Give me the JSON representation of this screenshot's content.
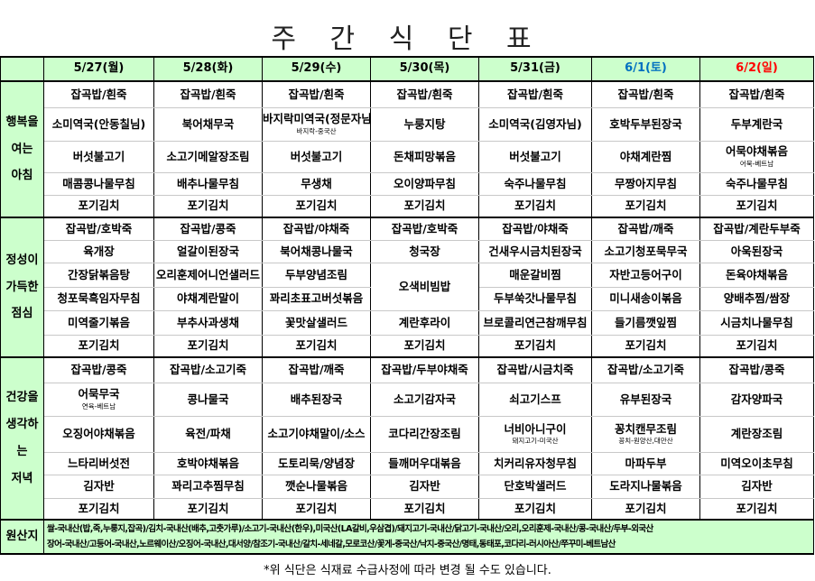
{
  "title": "주 간 식 단 표",
  "days": [
    {
      "label": "5/27(월)",
      "color": "#000000"
    },
    {
      "label": "5/28(화)",
      "color": "#000000"
    },
    {
      "label": "5/29(수)",
      "color": "#000000"
    },
    {
      "label": "5/30(목)",
      "color": "#000000"
    },
    {
      "label": "5/31(금)",
      "color": "#000000"
    },
    {
      "label": "6/1(토)",
      "color": "#0070c0"
    },
    {
      "label": "6/2(일)",
      "color": "#ff0000"
    }
  ],
  "meals": [
    {
      "label_lines": [
        "행복을",
        "여는",
        "아침"
      ],
      "days": [
        [
          {
            "t": "잡곡밥/흰죽"
          },
          {
            "t": "소미역국(안동칠님)"
          },
          {
            "t": "버섯불고기"
          },
          {
            "t": "매콤콩나물무침"
          },
          {
            "t": "포기김치"
          }
        ],
        [
          {
            "t": "잡곡밥/흰죽"
          },
          {
            "t": "북어채무국"
          },
          {
            "t": "소고기메알장조림"
          },
          {
            "t": "배추나물무침"
          },
          {
            "t": "포기김치"
          }
        ],
        [
          {
            "t": "잡곡밥/흰죽"
          },
          {
            "t": "바지락미역국(정문자님)",
            "n": "바지락-중국산"
          },
          {
            "t": "버섯불고기"
          },
          {
            "t": "무생채"
          },
          {
            "t": "포기김치"
          }
        ],
        [
          {
            "t": "잡곡밥/흰죽"
          },
          {
            "t": "누룽지탕"
          },
          {
            "t": "돈채피망볶음"
          },
          {
            "t": "오이양파무침"
          },
          {
            "t": "포기김치"
          }
        ],
        [
          {
            "t": "잡곡밥/흰죽"
          },
          {
            "t": "소미역국(김영자님)"
          },
          {
            "t": "버섯불고기"
          },
          {
            "t": "숙주나물무침"
          },
          {
            "t": "포기김치"
          }
        ],
        [
          {
            "t": "잡곡밥/흰죽"
          },
          {
            "t": "호박두부된장국"
          },
          {
            "t": "야채계란찜"
          },
          {
            "t": "무짱아지무침"
          },
          {
            "t": "포기김치"
          }
        ],
        [
          {
            "t": "잡곡밥/흰죽"
          },
          {
            "t": "두부계란국"
          },
          {
            "t": "어묵야채볶음",
            "n": "어묵-베트남"
          },
          {
            "t": "숙주나물무침"
          },
          {
            "t": "포기김치"
          }
        ]
      ]
    },
    {
      "label_lines": [
        "정성이",
        "가득한",
        "점심"
      ],
      "days": [
        [
          {
            "t": "잡곡밥/호박죽"
          },
          {
            "t": "육개장"
          },
          {
            "t": "간장닭볶음탕"
          },
          {
            "t": "청포묵흑임자무침"
          },
          {
            "t": "미역줄기볶음"
          },
          {
            "t": "포기김치"
          }
        ],
        [
          {
            "t": "잡곡밥/콩죽"
          },
          {
            "t": "얼갈이된장국"
          },
          {
            "t": "오리훈제어니언샐러드"
          },
          {
            "t": "야채계란말이"
          },
          {
            "t": "부추사과생채"
          },
          {
            "t": "포기김치"
          }
        ],
        [
          {
            "t": "잡곡밥/야채죽"
          },
          {
            "t": "북어채콩나물국"
          },
          {
            "t": "두부양념조림"
          },
          {
            "t": "꽈리초표고버섯볶음"
          },
          {
            "t": "꽃맛살샐러드"
          },
          {
            "t": "포기김치"
          }
        ],
        [
          {
            "t": "잡곡밥/호박죽"
          },
          {
            "t": "청국장"
          },
          {
            "t": "오색비빔밥",
            "span": 2
          },
          null,
          {
            "t": "계란후라이"
          },
          {
            "t": "포기김치"
          }
        ],
        [
          {
            "t": "잡곡밥/야채죽"
          },
          {
            "t": "건새우시금치된장국"
          },
          {
            "t": "매운갈비찜"
          },
          {
            "t": "두부쑥갓나물무침"
          },
          {
            "t": "브로콜리연근참깨무침"
          },
          {
            "t": "포기김치"
          }
        ],
        [
          {
            "t": "잡곡밥/깨죽"
          },
          {
            "t": "소고기청포묵무국"
          },
          {
            "t": "자반고등어구이"
          },
          {
            "t": "미니새송이볶음"
          },
          {
            "t": "들기름깻잎찜"
          },
          {
            "t": "포기김치"
          }
        ],
        [
          {
            "t": "잡곡밥/계란두부죽"
          },
          {
            "t": "아욱된장국"
          },
          {
            "t": "돈육야채볶음"
          },
          {
            "t": "양배추찜/쌈장"
          },
          {
            "t": "시금치나물무침"
          },
          {
            "t": "포기김치"
          }
        ]
      ]
    },
    {
      "label_lines": [
        "건강을",
        "생각하는",
        "저녁"
      ],
      "days": [
        [
          {
            "t": "잡곡밥/콩죽"
          },
          {
            "t": "어묵무국",
            "n": "연육-베트남"
          },
          {
            "t": "오징어야채볶음"
          },
          {
            "t": "느타리버섯전"
          },
          {
            "t": "김자반"
          },
          {
            "t": "포기김치"
          }
        ],
        [
          {
            "t": "잡곡밥/소고기죽"
          },
          {
            "t": "콩나물국"
          },
          {
            "t": "육전/파채"
          },
          {
            "t": "호박야채볶음"
          },
          {
            "t": "꽈리고추찜무침"
          },
          {
            "t": "포기김치"
          }
        ],
        [
          {
            "t": "잡곡밥/깨죽"
          },
          {
            "t": "배추된장국"
          },
          {
            "t": "소고기야채말이/소스"
          },
          {
            "t": "도토리묵/양념장"
          },
          {
            "t": "깻순나물볶음"
          },
          {
            "t": "포기김치"
          }
        ],
        [
          {
            "t": "잡곡밥/두부야채죽"
          },
          {
            "t": "소고기감자국"
          },
          {
            "t": "코다리간장조림"
          },
          {
            "t": "들깨머우대볶음"
          },
          {
            "t": "김자반"
          },
          {
            "t": "포기김치"
          }
        ],
        [
          {
            "t": "잡곡밥/시금치죽"
          },
          {
            "t": "쇠고기스프"
          },
          {
            "t": "너비아니구이",
            "n": "돼지고기-미국산"
          },
          {
            "t": "치커리유자청무침"
          },
          {
            "t": "단호박샐러드"
          },
          {
            "t": "포기김치"
          }
        ],
        [
          {
            "t": "잡곡밥/소고기죽"
          },
          {
            "t": "유부된장국"
          },
          {
            "t": "꽁치캔무조림",
            "n": "꽁치-원양산,대만산"
          },
          {
            "t": "마파두부"
          },
          {
            "t": "도라지나물볶음"
          },
          {
            "t": "포기김치"
          }
        ],
        [
          {
            "t": "잡곡밥/콩죽"
          },
          {
            "t": "감자양파국"
          },
          {
            "t": "계란장조림"
          },
          {
            "t": "미역오이초무침"
          },
          {
            "t": "김자반"
          },
          {
            "t": "포기김치"
          }
        ]
      ]
    }
  ],
  "origin": {
    "label": "원산지",
    "line1": "쌀-국내산(밥,죽,누룽지,잡곡)/김치-국내산(배추,고춧가루)/소고기-국내산(한우),미국산(LA갈비,우삼겹)/돼지고기-국내산/닭고기-국내산/오리,오리훈제-국내산/콩-국내산/두부-외국산",
    "line2": "장어-국내산/고등어-국내산,노르웨이산/오징어-국내산,대서양/참조기-국내산/갈치-세네갈,모로코산/꽃게-중국산/낙지-중국산/명태,동태포,코다리-러시아산/쭈꾸미-베트남산"
  },
  "footer_note": "*위 식단은 식재료 수급사정에 따라 변경 될 수도 있습니다."
}
